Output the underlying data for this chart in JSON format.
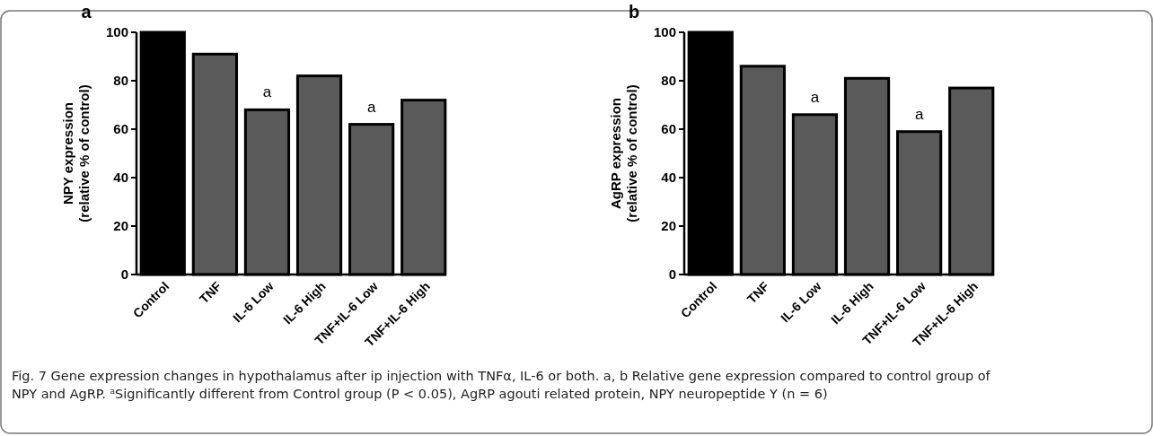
{
  "chart_data": [
    {
      "type": "bar",
      "title": "a",
      "ylabel": "NPY expression\n(relative % of control)",
      "categories": [
        "Control",
        "TNF",
        "IL-6 Low",
        "IL-6 High",
        "TNF+IL-6 Low",
        "TNF+IL-6 High"
      ],
      "values": [
        100,
        91,
        68,
        82,
        62,
        72
      ],
      "colors": [
        "#000000",
        "#5a5a5a",
        "#5a5a5a",
        "#5a5a5a",
        "#5a5a5a",
        "#5a5a5a"
      ],
      "ylim": [
        0,
        100
      ],
      "yticks": [
        0,
        20,
        40,
        60,
        80,
        100
      ],
      "grid": false,
      "annotations": [
        {
          "text": "a",
          "x": "IL-6 Low",
          "y": 68
        },
        {
          "text": "a",
          "x": "TNF+IL-6 Low",
          "y": 62
        },
        "Fig. 7 Gene expression changes in hypothalamus after ip injection with TNFα, IL-6 or both. a, b Relative gene expression compared to control group of NPY and AgRP. $^{a}$Significantly different from Control group (P < 0.05), AgRP agouti related protein, NPY neuropeptide Y (n = 6)"
      ]
    },
    {
      "type": "bar",
      "title": "b",
      "ylabel": "AgRP expression\n(relative % of control)",
      "categories": [
        "Control",
        "TNF",
        "IL-6 Low",
        "IL-6 High",
        "TNF+IL-6 Low",
        "TNF+IL-6 High"
      ],
      "values": [
        100,
        86,
        66,
        81,
        59,
        77
      ],
      "colors": [
        "#000000",
        "#5a5a5a",
        "#5a5a5a",
        "#5a5a5a",
        "#5a5a5a",
        "#5a5a5a"
      ],
      "ylim": [
        0,
        100
      ],
      "yticks": [
        0,
        20,
        40,
        60,
        80,
        100
      ],
      "grid": false,
      "annotations": [
        {
          "text": "a",
          "x": "IL-6 Low",
          "y": 66
        },
        {
          "text": "a",
          "x": "TNF+IL-6 Low",
          "y": 59
        }
      ]
    }
  ]
}
